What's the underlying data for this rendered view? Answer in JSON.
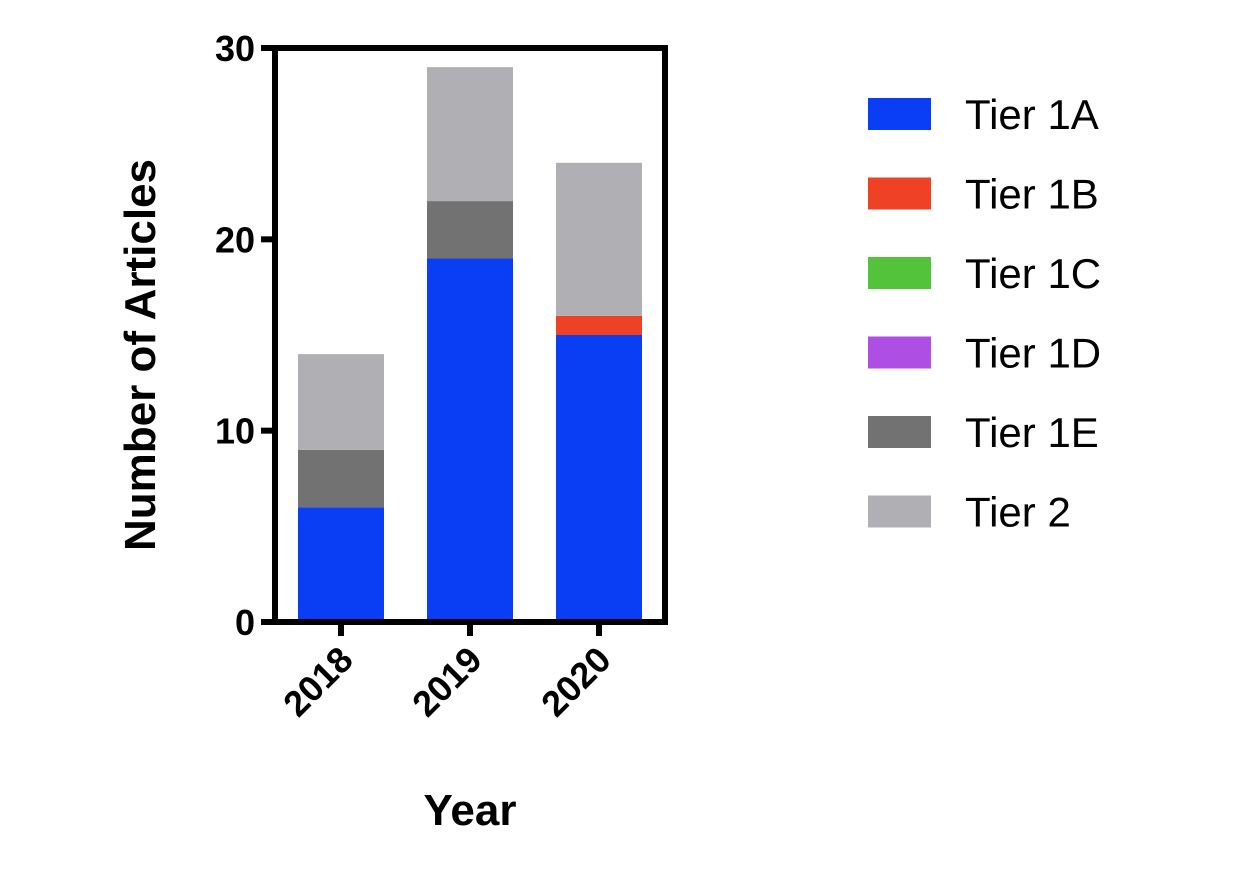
{
  "chart_data": {
    "type": "bar",
    "stacked": true,
    "title": "",
    "xlabel": "Year",
    "ylabel": "Number of Articles",
    "categories": [
      "2018",
      "2019",
      "2020"
    ],
    "ylim": [
      0,
      30
    ],
    "yticks": [
      0,
      10,
      20,
      30
    ],
    "grid": false,
    "legend_position": "right",
    "series": [
      {
        "name": "Tier 1A",
        "color": "#0a3ef5",
        "values": [
          6,
          19,
          15
        ]
      },
      {
        "name": "Tier 1B",
        "color": "#ee4126",
        "values": [
          0,
          0,
          1
        ]
      },
      {
        "name": "Tier 1C",
        "color": "#52c33b",
        "values": [
          0,
          0,
          0
        ]
      },
      {
        "name": "Tier 1D",
        "color": "#ae4ee3",
        "values": [
          0,
          0,
          0
        ]
      },
      {
        "name": "Tier 1E",
        "color": "#727272",
        "values": [
          3,
          3,
          0
        ]
      },
      {
        "name": "Tier 2",
        "color": "#b0b0b4",
        "values": [
          5,
          7,
          8
        ]
      }
    ]
  }
}
